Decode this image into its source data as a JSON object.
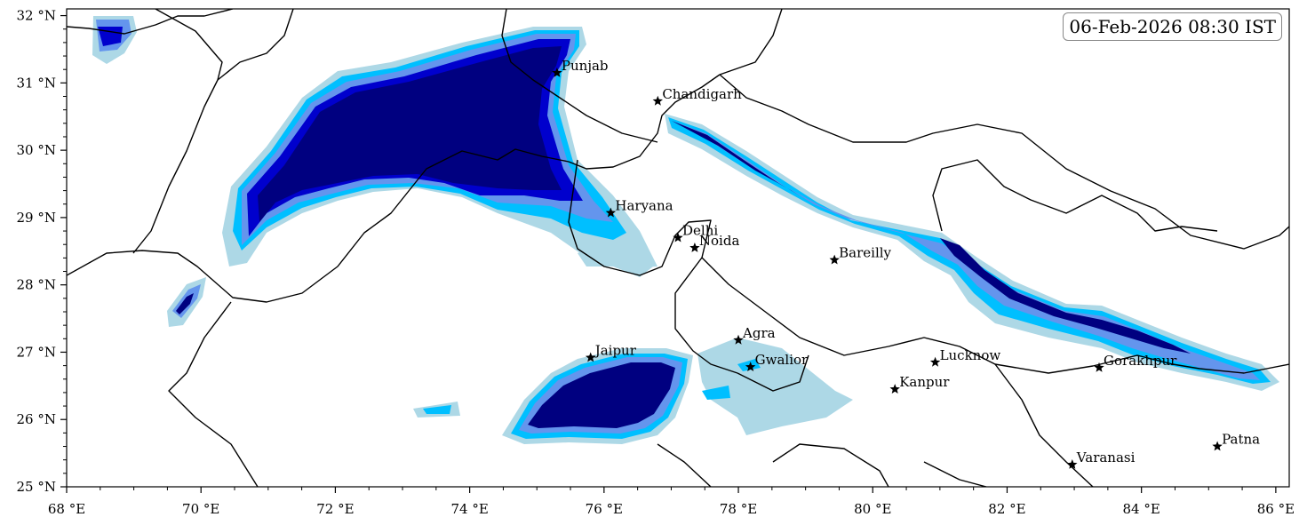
{
  "timestamp": "06-Feb-2026 08:30 IST",
  "map": {
    "lon_range": [
      68,
      86.2
    ],
    "lat_range": [
      25,
      32.1
    ],
    "x_ticks": [
      {
        "lon": 68,
        "label": "68 °E"
      },
      {
        "lon": 70,
        "label": "70 °E"
      },
      {
        "lon": 72,
        "label": "72 °E"
      },
      {
        "lon": 74,
        "label": "74 °E"
      },
      {
        "lon": 76,
        "label": "76 °E"
      },
      {
        "lon": 78,
        "label": "78 °E"
      },
      {
        "lon": 80,
        "label": "80 °E"
      },
      {
        "lon": 82,
        "label": "82 °E"
      },
      {
        "lon": 84,
        "label": "84 °E"
      },
      {
        "lon": 86,
        "label": "86 °E"
      }
    ],
    "y_ticks": [
      {
        "lat": 25,
        "label": "25 °N"
      },
      {
        "lat": 26,
        "label": "26 °N"
      },
      {
        "lat": 27,
        "label": "27 °N"
      },
      {
        "lat": 28,
        "label": "28 °N"
      },
      {
        "lat": 29,
        "label": "29 °N"
      },
      {
        "lat": 30,
        "label": "30 °N"
      },
      {
        "lat": 31,
        "label": "31 °N"
      },
      {
        "lat": 32,
        "label": "32 °N"
      }
    ],
    "cities": [
      {
        "name": "Punjab",
        "lon": 75.3,
        "lat": 31.15
      },
      {
        "name": "Chandigarh",
        "lon": 76.8,
        "lat": 30.73
      },
      {
        "name": "Haryana",
        "lon": 76.1,
        "lat": 29.07
      },
      {
        "name": "Delhi",
        "lon": 77.1,
        "lat": 28.7
      },
      {
        "name": "Noida",
        "lon": 77.35,
        "lat": 28.55
      },
      {
        "name": "Bareilly",
        "lon": 79.43,
        "lat": 28.37
      },
      {
        "name": "Agra",
        "lon": 78.0,
        "lat": 27.18
      },
      {
        "name": "Jaipur",
        "lon": 75.8,
        "lat": 26.92
      },
      {
        "name": "Gwalior",
        "lon": 78.18,
        "lat": 26.78
      },
      {
        "name": "Lucknow",
        "lon": 80.93,
        "lat": 26.85
      },
      {
        "name": "Gorakhpur",
        "lon": 83.37,
        "lat": 26.77
      },
      {
        "name": "Kanpur",
        "lon": 80.33,
        "lat": 26.45
      },
      {
        "name": "Varanasi",
        "lon": 82.97,
        "lat": 25.33
      },
      {
        "name": "Patna",
        "lon": 85.13,
        "lat": 25.6
      }
    ],
    "colors": {
      "level1": "#add8e6",
      "level2": "#00bfff",
      "level3": "#6495ed",
      "level4": "#0000cd",
      "level5": "#000080",
      "border": "#000000"
    }
  }
}
